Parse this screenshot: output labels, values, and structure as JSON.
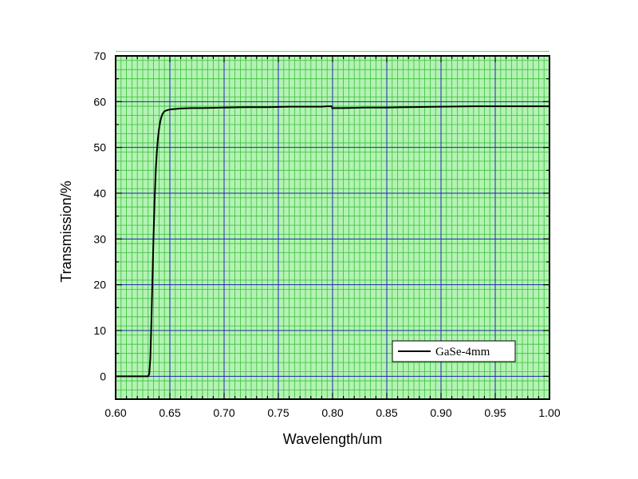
{
  "chart_data": {
    "type": "line",
    "title": "",
    "xlabel": "Wavelength/um",
    "ylabel": "Transmission/%",
    "xlim": [
      0.6,
      1.0
    ],
    "ylim": [
      -5,
      70
    ],
    "x_ticks": [
      0.6,
      0.65,
      0.7,
      0.75,
      0.8,
      0.85,
      0.9,
      0.95,
      1.0
    ],
    "x_tick_labels": [
      "0.60",
      "0.65",
      "0.70",
      "0.75",
      "0.80",
      "0.85",
      "0.90",
      "0.95",
      "1.00"
    ],
    "y_ticks": [
      0,
      10,
      20,
      30,
      40,
      50,
      60,
      70
    ],
    "y_tick_labels": [
      "0",
      "10",
      "20",
      "30",
      "40",
      "50",
      "60",
      "70"
    ],
    "grid": true,
    "legend_position": "bottom-right",
    "colors": {
      "plot_background": "#b3f3b3",
      "minor_grid": "#3cbf3c",
      "major_grid": "#2323b4",
      "series_line": "#000000"
    },
    "series": [
      {
        "name": "GaSe-4mm",
        "x": [
          0.6,
          0.63,
          0.631,
          0.632,
          0.633,
          0.634,
          0.635,
          0.636,
          0.637,
          0.638,
          0.639,
          0.64,
          0.641,
          0.642,
          0.643,
          0.644,
          0.645,
          0.647,
          0.65,
          0.655,
          0.66,
          0.67,
          0.68,
          0.7,
          0.72,
          0.74,
          0.76,
          0.78,
          0.79,
          0.795,
          0.799,
          0.8,
          0.801,
          0.81,
          0.83,
          0.85,
          0.87,
          0.9,
          0.93,
          0.96,
          1.0
        ],
        "y": [
          0,
          0,
          0.5,
          4,
          12,
          22,
          31,
          39,
          45,
          49,
          52,
          54,
          55.5,
          56.5,
          57.2,
          57.6,
          57.9,
          58.1,
          58.3,
          58.4,
          58.5,
          58.6,
          58.6,
          58.7,
          58.8,
          58.8,
          58.9,
          58.9,
          58.9,
          59.0,
          59.0,
          58.5,
          58.6,
          58.6,
          58.7,
          58.7,
          58.8,
          58.9,
          59.0,
          59.0,
          59.0
        ]
      }
    ]
  }
}
